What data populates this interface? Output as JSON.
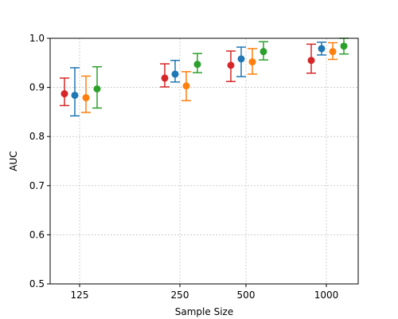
{
  "chart_data": {
    "type": "scatter",
    "title": "",
    "xlabel": "Sample Size",
    "ylabel": "AUC",
    "categories": [
      "125",
      "250",
      "500",
      "1000"
    ],
    "ylim": [
      0.5,
      1.0
    ],
    "yticks": [
      "0.5",
      "0.6",
      "0.7",
      "0.8",
      "0.9",
      "1.0"
    ],
    "grid": true,
    "legend": "none",
    "series": [
      {
        "color": "#d62728",
        "values": [
          0.887,
          0.919,
          0.945,
          0.955
        ],
        "lower": [
          0.863,
          0.901,
          0.912,
          0.929
        ],
        "upper": [
          0.919,
          0.948,
          0.974,
          0.988
        ]
      },
      {
        "color": "#1f77b4",
        "values": [
          0.884,
          0.927,
          0.958,
          0.979
        ],
        "lower": [
          0.842,
          0.911,
          0.922,
          0.966
        ],
        "upper": [
          0.94,
          0.955,
          0.982,
          0.992
        ]
      },
      {
        "color": "#ff7f0e",
        "values": [
          0.879,
          0.903,
          0.952,
          0.973
        ],
        "lower": [
          0.849,
          0.873,
          0.927,
          0.957
        ],
        "upper": [
          0.923,
          0.932,
          0.979,
          0.991
        ]
      },
      {
        "color": "#2ca02c",
        "values": [
          0.897,
          0.947,
          0.973,
          0.984
        ],
        "lower": [
          0.858,
          0.93,
          0.956,
          0.968
        ],
        "upper": [
          0.942,
          0.969,
          0.993,
          1.0
        ]
      }
    ]
  }
}
